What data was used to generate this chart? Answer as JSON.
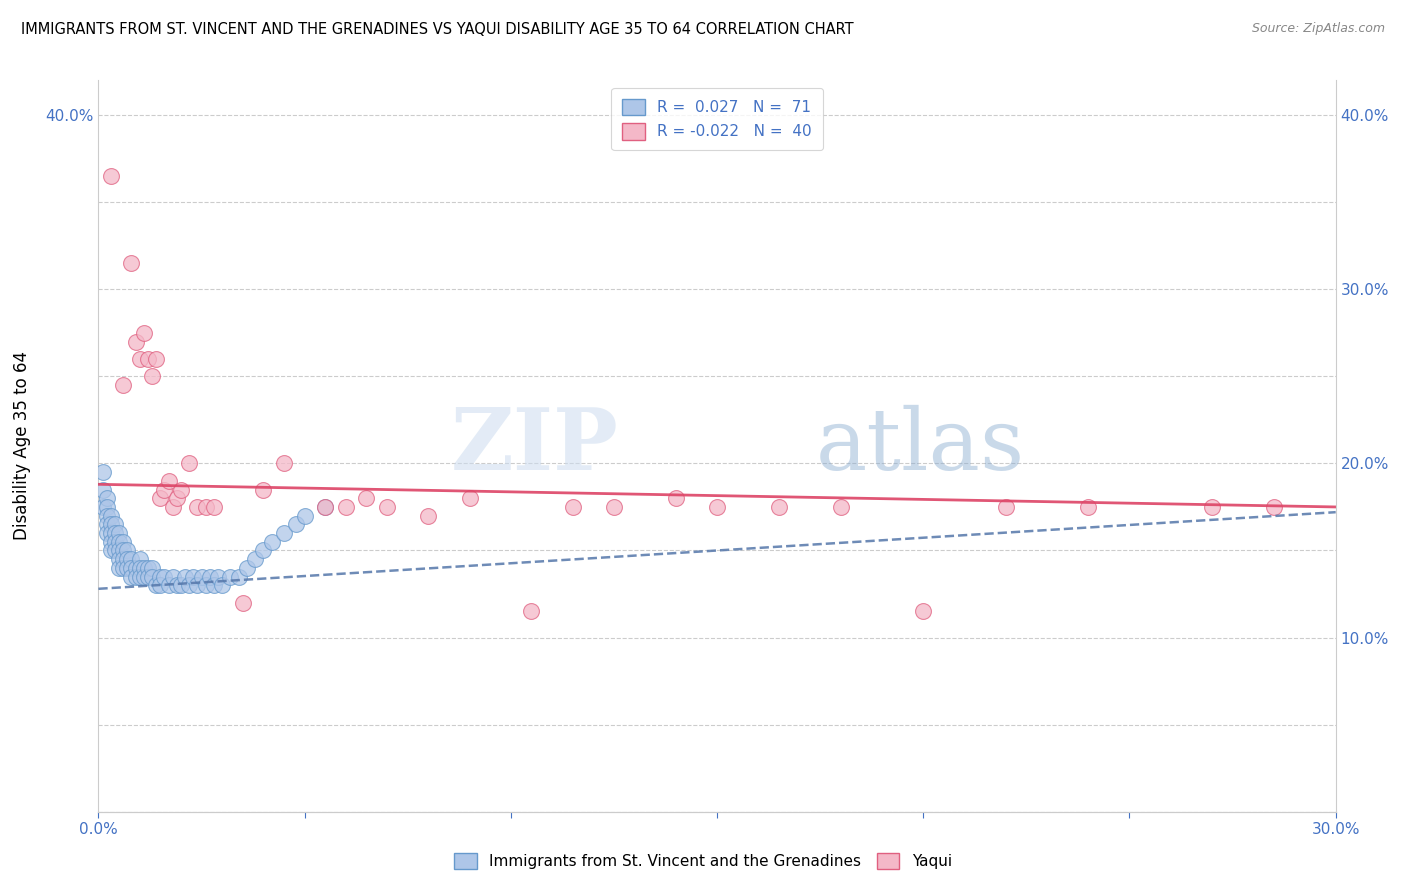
{
  "title": "IMMIGRANTS FROM ST. VINCENT AND THE GRENADINES VS YAQUI DISABILITY AGE 35 TO 64 CORRELATION CHART",
  "source": "Source: ZipAtlas.com",
  "ylabel": "Disability Age 35 to 64",
  "xlim": [
    0.0,
    0.3
  ],
  "ylim": [
    0.0,
    0.42
  ],
  "blue_color": "#aec6e8",
  "pink_color": "#f4b8c8",
  "blue_edge_color": "#6699cc",
  "pink_edge_color": "#e06080",
  "blue_line_color": "#5577aa",
  "pink_line_color": "#dd4466",
  "watermark_color": "#d0dff0",
  "tick_color": "#4472c4",
  "blue_x": [
    0.001,
    0.001,
    0.001,
    0.002,
    0.002,
    0.002,
    0.002,
    0.002,
    0.003,
    0.003,
    0.003,
    0.003,
    0.003,
    0.004,
    0.004,
    0.004,
    0.004,
    0.005,
    0.005,
    0.005,
    0.005,
    0.005,
    0.006,
    0.006,
    0.006,
    0.006,
    0.007,
    0.007,
    0.007,
    0.008,
    0.008,
    0.008,
    0.009,
    0.009,
    0.01,
    0.01,
    0.01,
    0.011,
    0.011,
    0.012,
    0.012,
    0.013,
    0.013,
    0.014,
    0.015,
    0.015,
    0.016,
    0.017,
    0.018,
    0.019,
    0.02,
    0.021,
    0.022,
    0.023,
    0.024,
    0.025,
    0.026,
    0.027,
    0.028,
    0.029,
    0.03,
    0.032,
    0.034,
    0.036,
    0.038,
    0.04,
    0.042,
    0.045,
    0.048,
    0.05,
    0.055
  ],
  "blue_y": [
    0.195,
    0.185,
    0.175,
    0.18,
    0.175,
    0.17,
    0.165,
    0.16,
    0.17,
    0.165,
    0.16,
    0.155,
    0.15,
    0.165,
    0.16,
    0.155,
    0.15,
    0.16,
    0.155,
    0.15,
    0.145,
    0.14,
    0.155,
    0.15,
    0.145,
    0.14,
    0.15,
    0.145,
    0.14,
    0.145,
    0.14,
    0.135,
    0.14,
    0.135,
    0.145,
    0.14,
    0.135,
    0.14,
    0.135,
    0.14,
    0.135,
    0.14,
    0.135,
    0.13,
    0.135,
    0.13,
    0.135,
    0.13,
    0.135,
    0.13,
    0.13,
    0.135,
    0.13,
    0.135,
    0.13,
    0.135,
    0.13,
    0.135,
    0.13,
    0.135,
    0.13,
    0.135,
    0.135,
    0.14,
    0.145,
    0.15,
    0.155,
    0.16,
    0.165,
    0.17,
    0.175
  ],
  "pink_x": [
    0.003,
    0.006,
    0.008,
    0.009,
    0.01,
    0.011,
    0.012,
    0.013,
    0.014,
    0.015,
    0.016,
    0.017,
    0.018,
    0.019,
    0.02,
    0.022,
    0.024,
    0.026,
    0.028,
    0.035,
    0.04,
    0.045,
    0.055,
    0.06,
    0.065,
    0.07,
    0.08,
    0.09,
    0.105,
    0.115,
    0.125,
    0.14,
    0.15,
    0.165,
    0.18,
    0.2,
    0.22,
    0.24,
    0.27,
    0.285
  ],
  "pink_y": [
    0.365,
    0.245,
    0.315,
    0.27,
    0.26,
    0.275,
    0.26,
    0.25,
    0.26,
    0.18,
    0.185,
    0.19,
    0.175,
    0.18,
    0.185,
    0.2,
    0.175,
    0.175,
    0.175,
    0.12,
    0.185,
    0.2,
    0.175,
    0.175,
    0.18,
    0.175,
    0.17,
    0.18,
    0.115,
    0.175,
    0.175,
    0.18,
    0.175,
    0.175,
    0.175,
    0.115,
    0.175,
    0.175,
    0.175,
    0.175
  ],
  "blue_trend_x": [
    0.0,
    0.3
  ],
  "blue_trend_y": [
    0.128,
    0.172
  ],
  "pink_trend_x": [
    0.0,
    0.3
  ],
  "pink_trend_y": [
    0.188,
    0.175
  ]
}
